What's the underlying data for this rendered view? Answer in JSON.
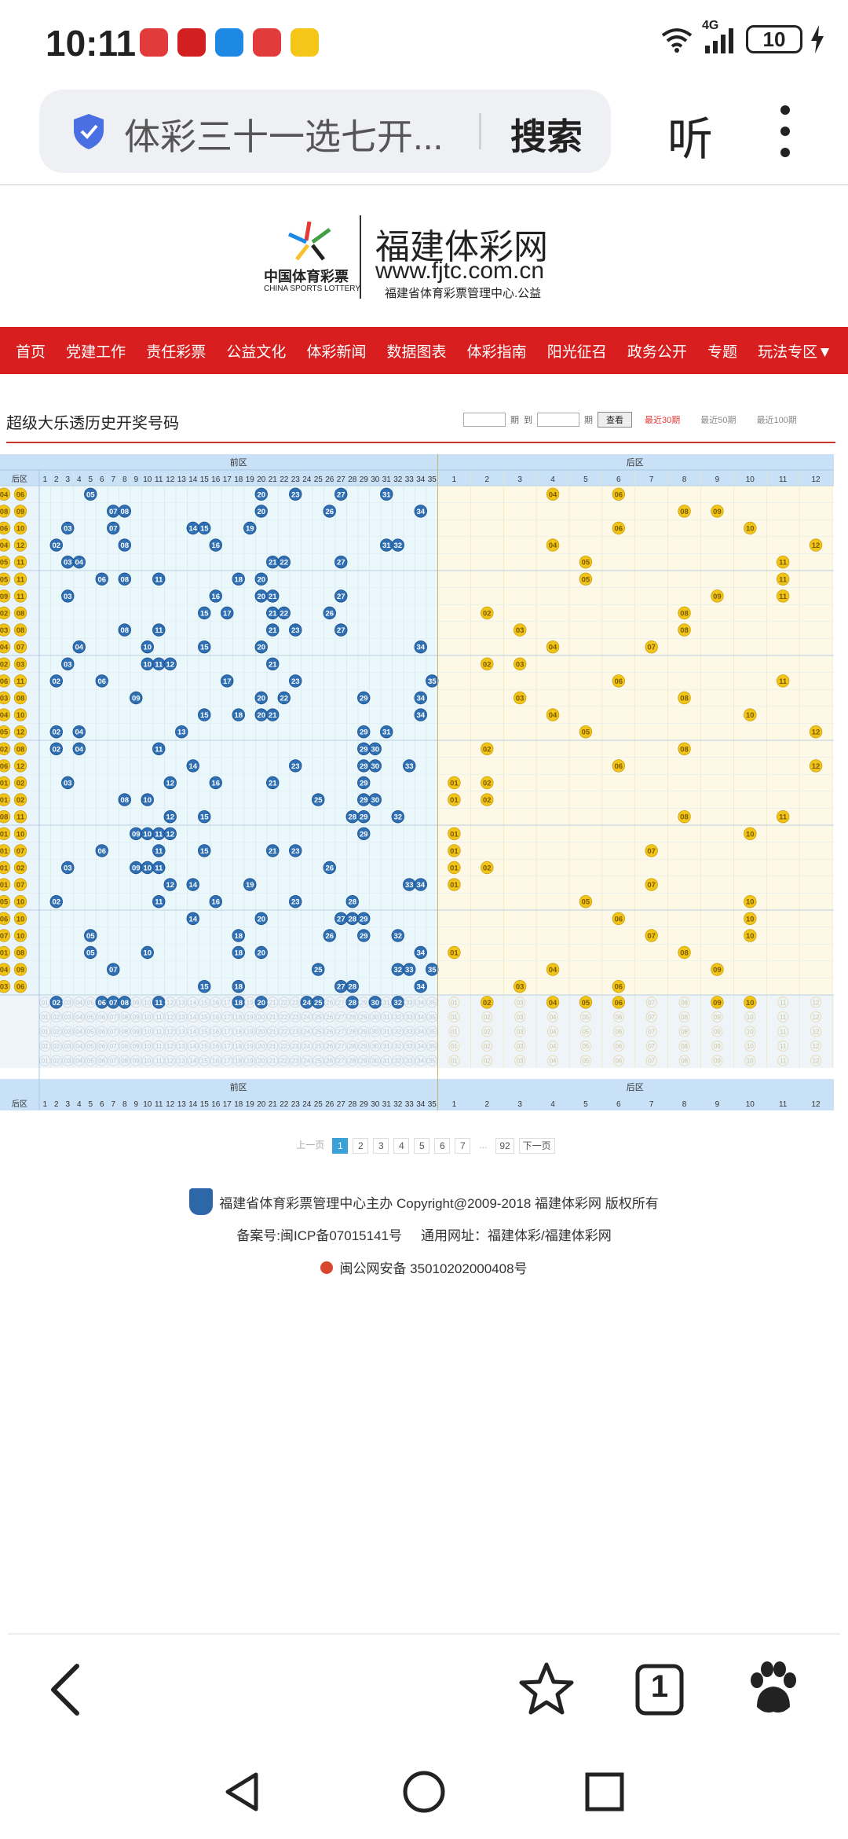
{
  "status_bar": {
    "time": "10:11",
    "network": "4G",
    "battery": "10",
    "app_icons": [
      "huawei-app-icon",
      "lottery-app-icon",
      "message-icon",
      "huawei-app-icon",
      "car-app-icon"
    ]
  },
  "browser": {
    "address_text": "体彩三十一选七开...",
    "search_label": "搜索",
    "listen_label": "听"
  },
  "site": {
    "logo_cn": "中国体育彩票",
    "logo_en": "CHINA SPORTS LOTTERY",
    "title": "福建体彩网",
    "url": "www.fjtc.com.cn",
    "subtitle": "福建省体育彩票管理中心.公益",
    "nav": [
      "首页",
      "党建工作",
      "责任彩票",
      "公益文化",
      "体彩新闻",
      "数据图表",
      "体彩指南",
      "阳光征召",
      "政务公开",
      "专题",
      "玩法专区▼"
    ]
  },
  "section": {
    "title": "超级大乐透历史开奖号码",
    "period_label1": "期",
    "to_label": "到",
    "period_label2": "期",
    "view_button": "查看",
    "recent": [
      "最近30期",
      "最近50期",
      "最近100期"
    ]
  },
  "chart": {
    "front_label": "前区",
    "back_label": "后区",
    "corner_label": "后区",
    "front_count": 35,
    "back_count": 12,
    "rows": [
      {
        "left": [
          "04",
          "06"
        ],
        "f": [
          5,
          20,
          23,
          27,
          31
        ],
        "b": [
          4,
          6
        ]
      },
      {
        "left": [
          "08",
          "09"
        ],
        "f": [
          7,
          8,
          20,
          26,
          34
        ],
        "b": [
          8,
          9
        ]
      },
      {
        "left": [
          "06",
          "10"
        ],
        "f": [
          3,
          7,
          14,
          15,
          19
        ],
        "b": [
          6,
          10
        ]
      },
      {
        "left": [
          "04",
          "12"
        ],
        "f": [
          2,
          8,
          16,
          31,
          32
        ],
        "b": [
          4,
          12
        ]
      },
      {
        "left": [
          "05",
          "11"
        ],
        "f": [
          3,
          4,
          21,
          22,
          27
        ],
        "b": [
          5,
          11
        ]
      },
      {
        "left": [
          "05",
          "11"
        ],
        "f": [
          6,
          8,
          11,
          18,
          20
        ],
        "b": [
          5,
          11
        ]
      },
      {
        "left": [
          "09",
          "11"
        ],
        "f": [
          3,
          16,
          20,
          21,
          27
        ],
        "b": [
          9,
          11
        ]
      },
      {
        "left": [
          "02",
          "08"
        ],
        "f": [
          15,
          17,
          21,
          22,
          26
        ],
        "b": [
          2,
          8
        ]
      },
      {
        "left": [
          "03",
          "08"
        ],
        "f": [
          8,
          11,
          21,
          23,
          27
        ],
        "b": [
          3,
          8
        ]
      },
      {
        "left": [
          "04",
          "07"
        ],
        "f": [
          4,
          10,
          15,
          20,
          34
        ],
        "b": [
          4,
          7
        ]
      },
      {
        "left": [
          "02",
          "03"
        ],
        "f": [
          3,
          10,
          11,
          12,
          21
        ],
        "b": [
          2,
          3
        ]
      },
      {
        "left": [
          "06",
          "11"
        ],
        "f": [
          2,
          6,
          17,
          23,
          35
        ],
        "b": [
          6,
          11
        ]
      },
      {
        "left": [
          "03",
          "08"
        ],
        "f": [
          9,
          20,
          22,
          29,
          34
        ],
        "b": [
          3,
          8
        ]
      },
      {
        "left": [
          "04",
          "10"
        ],
        "f": [
          15,
          18,
          20,
          21,
          34
        ],
        "b": [
          4,
          10
        ]
      },
      {
        "left": [
          "05",
          "12"
        ],
        "f": [
          2,
          4,
          13,
          29,
          31
        ],
        "b": [
          5,
          12
        ]
      },
      {
        "left": [
          "02",
          "08"
        ],
        "f": [
          2,
          4,
          11,
          29,
          30
        ],
        "b": [
          2,
          8
        ]
      },
      {
        "left": [
          "06",
          "12"
        ],
        "f": [
          14,
          23,
          29,
          30,
          33
        ],
        "b": [
          6,
          12
        ]
      },
      {
        "left": [
          "01",
          "02"
        ],
        "f": [
          3,
          12,
          16,
          21,
          29
        ],
        "b": [
          1,
          2
        ]
      },
      {
        "left": [
          "01",
          "02"
        ],
        "f": [
          8,
          10,
          25,
          29,
          30
        ],
        "b": [
          1,
          2
        ]
      },
      {
        "left": [
          "08",
          "11"
        ],
        "f": [
          12,
          15,
          28,
          29,
          32
        ],
        "b": [
          8,
          11
        ]
      },
      {
        "left": [
          "01",
          "10"
        ],
        "f": [
          9,
          10,
          11,
          12,
          29
        ],
        "b": [
          1,
          10
        ]
      },
      {
        "left": [
          "01",
          "07"
        ],
        "f": [
          6,
          11,
          15,
          21,
          23
        ],
        "b": [
          1,
          7
        ]
      },
      {
        "left": [
          "01",
          "02"
        ],
        "f": [
          3,
          9,
          10,
          11,
          26
        ],
        "b": [
          1,
          2
        ]
      },
      {
        "left": [
          "01",
          "07"
        ],
        "f": [
          12,
          14,
          19,
          33,
          34
        ],
        "b": [
          1,
          7
        ]
      },
      {
        "left": [
          "05",
          "10"
        ],
        "f": [
          2,
          11,
          16,
          23,
          28
        ],
        "b": [
          5,
          10
        ]
      },
      {
        "left": [
          "06",
          "10"
        ],
        "f": [
          14,
          20,
          27,
          28,
          29
        ],
        "b": [
          6,
          10
        ]
      },
      {
        "left": [
          "07",
          "10"
        ],
        "f": [
          5,
          18,
          26,
          29,
          32
        ],
        "b": [
          7,
          10
        ]
      },
      {
        "left": [
          "01",
          "08"
        ],
        "f": [
          5,
          10,
          18,
          20,
          34
        ],
        "b": [
          1,
          8
        ]
      },
      {
        "left": [
          "04",
          "09"
        ],
        "f": [
          7,
          25,
          32,
          33,
          35
        ],
        "b": [
          4,
          9
        ]
      },
      {
        "left": [
          "03",
          "06"
        ],
        "f": [
          15,
          18,
          27,
          28,
          34
        ],
        "b": [
          3,
          6
        ]
      }
    ],
    "ghost_front": [
      2,
      6,
      7,
      8,
      11,
      18,
      20,
      24,
      25,
      28,
      30,
      32
    ],
    "ghost_back": [
      2,
      4,
      5,
      6,
      9,
      10
    ]
  },
  "pager": {
    "prev": "上一页",
    "pages": [
      "1",
      "2",
      "3",
      "4",
      "5",
      "6",
      "7",
      "...",
      "92"
    ],
    "next": "下一页"
  },
  "footer": {
    "line1": "福建省体育彩票管理中心主办 Copyright@2009-2018 福建体彩网 版权所有",
    "line2a": "备案号:闽ICP备07015141号",
    "line2b": "通用网址：福建体彩/福建体彩网",
    "line3": "闽公网安备 35010202000408号"
  },
  "bottom_bar": {
    "tabs_count": "1"
  },
  "colors": {
    "nav_red": "#d81e1e",
    "front_ball": "#2f6fb4",
    "back_ball": "#f2c418"
  }
}
